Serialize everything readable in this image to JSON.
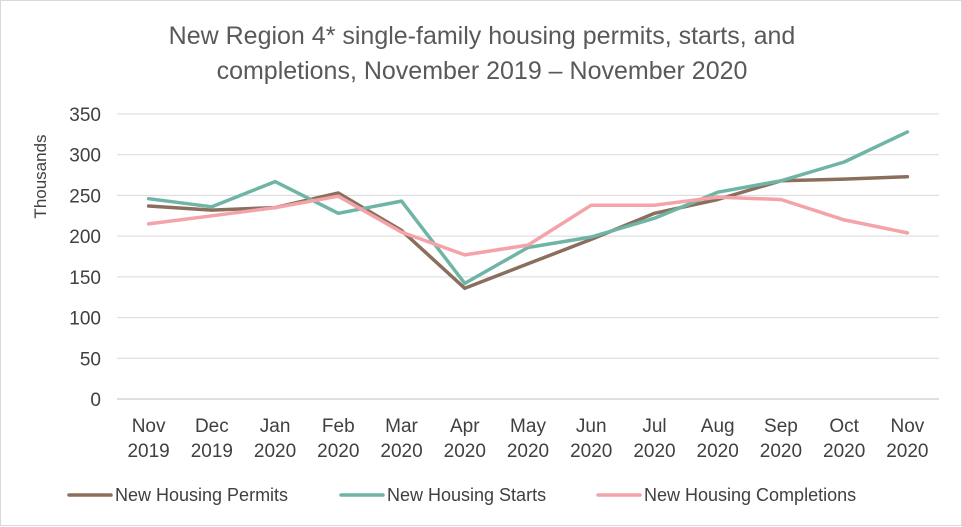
{
  "chart_data": {
    "type": "line",
    "title_lines": [
      "New Region 4* single-family housing permits, starts, and",
      "completions, November 2019 – November 2020"
    ],
    "xlabel": "",
    "ylabel": "Thousands",
    "ylim": [
      0,
      350
    ],
    "yticks": [
      "0",
      "50",
      "100",
      "150",
      "200",
      "250",
      "300",
      "350"
    ],
    "grid": true,
    "legend_position": "bottom",
    "categories": [
      [
        "Nov",
        "2019"
      ],
      [
        "Dec",
        "2019"
      ],
      [
        "Jan",
        "2020"
      ],
      [
        "Feb",
        "2020"
      ],
      [
        "Mar",
        "2020"
      ],
      [
        "Apr",
        "2020"
      ],
      [
        "May",
        "2020"
      ],
      [
        "Jun",
        "2020"
      ],
      [
        "Jul",
        "2020"
      ],
      [
        "Aug",
        "2020"
      ],
      [
        "Sep",
        "2020"
      ],
      [
        "Oct",
        "2020"
      ],
      [
        "Nov",
        "2020"
      ]
    ],
    "series": [
      {
        "name": "New Housing Permits",
        "color": "#8B6F5E",
        "values": [
          237,
          232,
          235,
          253,
          207,
          136,
          166,
          196,
          228,
          245,
          268,
          270,
          273
        ]
      },
      {
        "name": "New Housing Starts",
        "color": "#6FB5A6",
        "values": [
          246,
          236,
          267,
          228,
          243,
          142,
          186,
          199,
          222,
          254,
          268,
          291,
          328
        ]
      },
      {
        "name": "New Housing Completions",
        "color": "#F4A3A8",
        "values": [
          215,
          225,
          235,
          249,
          205,
          177,
          189,
          238,
          238,
          248,
          245,
          220,
          204
        ]
      }
    ]
  }
}
